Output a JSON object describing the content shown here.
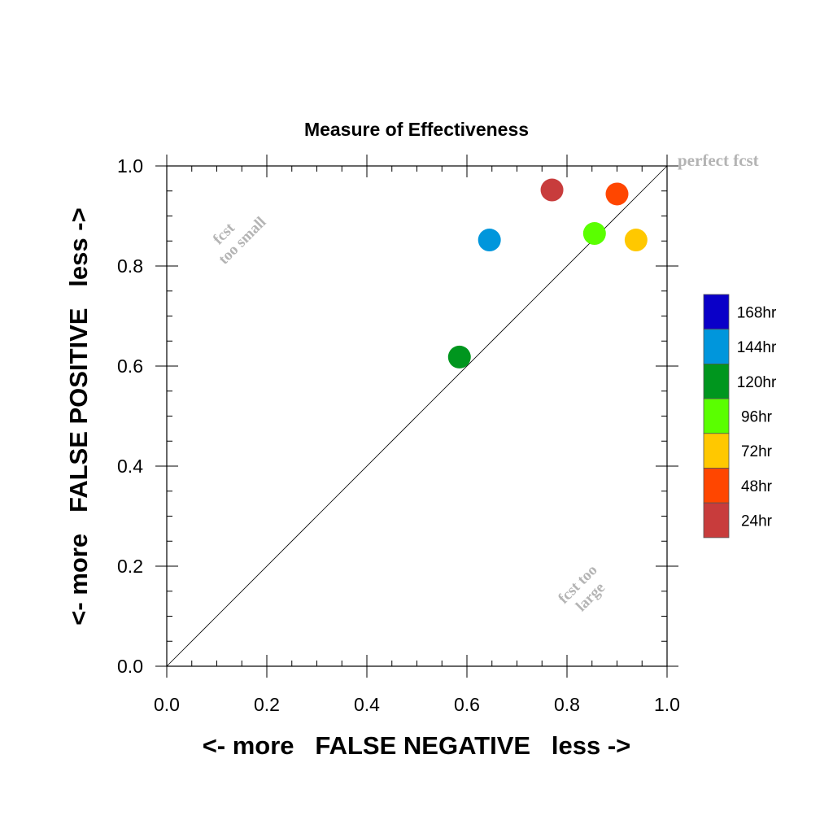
{
  "chart_data": {
    "type": "scatter",
    "title": "Measure of Effectiveness",
    "xlabel": "<- more   FALSE NEGATIVE   less ->",
    "ylabel": "<- more   FALSE POSITIVE   less ->",
    "xlim": [
      0.0,
      1.0
    ],
    "ylim": [
      0.0,
      1.0
    ],
    "x_ticks": [
      "0.0",
      "0.2",
      "0.4",
      "0.6",
      "0.8",
      "1.0"
    ],
    "y_ticks": [
      "0.0",
      "0.2",
      "0.4",
      "0.6",
      "0.8",
      "1.0"
    ],
    "grid": false,
    "reference_line": {
      "from": [
        0.0,
        0.0
      ],
      "to": [
        1.0,
        1.0
      ],
      "color": "#000000"
    },
    "annotations": {
      "perfect": "perfect fcst",
      "too_small_1": "fcst",
      "too_small_2": "too small",
      "too_large_1": "fcst too",
      "too_large_2": "large",
      "color": "#b4b4b4"
    },
    "legend": {
      "placement": "right",
      "entries": [
        {
          "label": "168hr",
          "color": "#0a00c8"
        },
        {
          "label": "144hr",
          "color": "#0096dc"
        },
        {
          "label": "120hr",
          "color": "#00961e"
        },
        {
          "label": "96hr",
          "color": "#5aff00"
        },
        {
          "label": "72hr",
          "color": "#ffc800"
        },
        {
          "label": "48hr",
          "color": "#ff4600"
        },
        {
          "label": "24hr",
          "color": "#c83c3c"
        }
      ]
    },
    "points": [
      {
        "label": "24hr",
        "x": 0.77,
        "y": 0.952,
        "color": "#c83c3c"
      },
      {
        "label": "48hr",
        "x": 0.9,
        "y": 0.944,
        "color": "#ff4600"
      },
      {
        "label": "72hr",
        "x": 0.938,
        "y": 0.852,
        "color": "#ffc800"
      },
      {
        "label": "96hr",
        "x": 0.855,
        "y": 0.865,
        "color": "#5aff00"
      },
      {
        "label": "120hr",
        "x": 0.585,
        "y": 0.618,
        "color": "#00961e"
      },
      {
        "label": "144hr",
        "x": 0.645,
        "y": 0.852,
        "color": "#0096dc"
      }
    ]
  }
}
